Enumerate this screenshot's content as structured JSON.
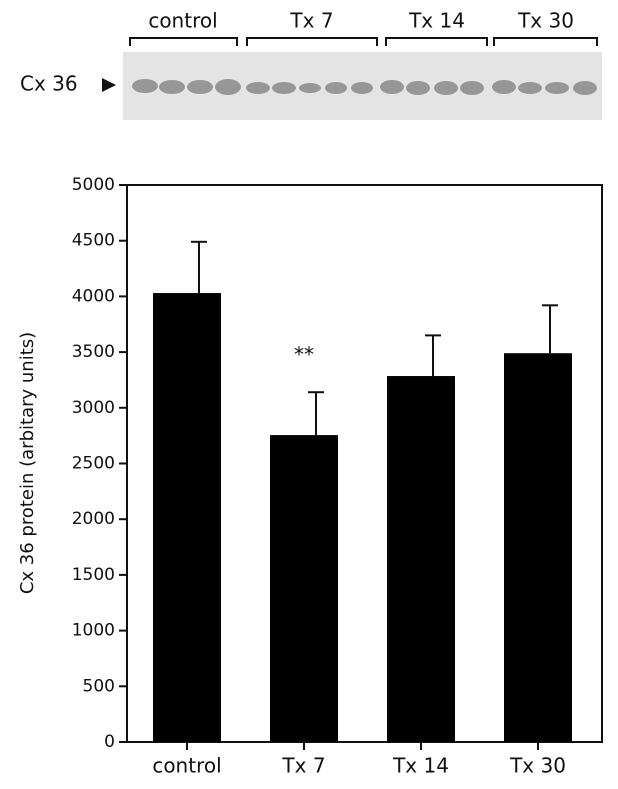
{
  "blot": {
    "label": "Cx 36",
    "groups": [
      "control",
      "Tx 7",
      "Tx 14",
      "Tx 30"
    ]
  },
  "chart_data": {
    "type": "bar",
    "ylabel": "Cx 36 protein (arbitary units)",
    "categories": [
      "control",
      "Tx 7",
      "Tx 14",
      "Tx 30"
    ],
    "values": [
      4030,
      2755,
      3285,
      3490
    ],
    "errors": [
      460,
      385,
      365,
      430
    ],
    "color": "#000000",
    "annotation": "**",
    "ylim": [
      0,
      5000
    ],
    "yticks": [
      0,
      500,
      1000,
      1500,
      2000,
      2500,
      3000,
      3500,
      4000,
      4500,
      5000
    ]
  }
}
